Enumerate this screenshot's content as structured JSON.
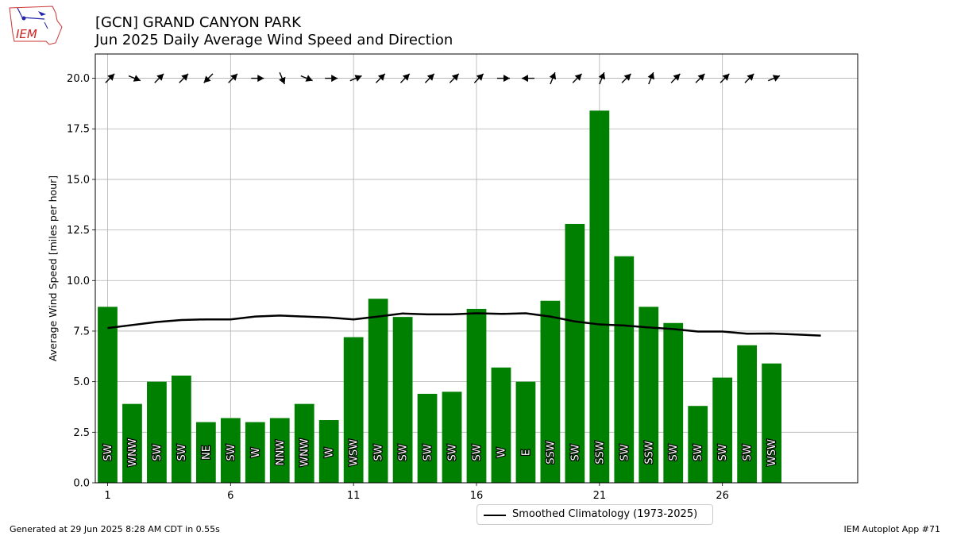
{
  "header": {
    "title_line1": "[GCN] GRAND CANYON PARK",
    "title_line2": "Jun 2025 Daily Average Wind Speed and Direction"
  },
  "logo": {
    "text": "IEM"
  },
  "footer": {
    "generated": "Generated at 29 Jun 2025 8:28 AM CDT in 0.55s",
    "app": "IEM Autoplot App #71"
  },
  "chart_data": {
    "type": "bar",
    "title": "[GCN] GRAND CANYON PARK",
    "subtitle": "Jun 2025 Daily Average Wind Speed and Direction",
    "ylabel": "Average Wind Speed [miles per hour]",
    "xlabel": "",
    "xlim": [
      0.5,
      31.5
    ],
    "ylim": [
      0,
      21.2
    ],
    "grid": true,
    "xticks": [
      1,
      6,
      11,
      16,
      21,
      26
    ],
    "yticks": [
      "0.0",
      "2.5",
      "5.0",
      "7.5",
      "10.0",
      "12.5",
      "15.0",
      "17.5",
      "20.0"
    ],
    "bar_color": "#008000",
    "days": [
      1,
      2,
      3,
      4,
      5,
      6,
      7,
      8,
      9,
      10,
      11,
      12,
      13,
      14,
      15,
      16,
      17,
      18,
      19,
      20,
      21,
      22,
      23,
      24,
      25,
      26,
      27,
      28
    ],
    "values": [
      8.7,
      3.9,
      5.0,
      5.3,
      3.0,
      3.2,
      3.0,
      3.2,
      3.9,
      3.1,
      7.2,
      9.1,
      8.2,
      4.4,
      4.5,
      8.6,
      5.7,
      5.0,
      9.0,
      12.8,
      18.4,
      11.2,
      8.7,
      7.9,
      3.8,
      5.2,
      6.8,
      5.9
    ],
    "directions": [
      "SW",
      "WNW",
      "SW",
      "SW",
      "NE",
      "SW",
      "W",
      "NNW",
      "WNW",
      "W",
      "WSW",
      "SW",
      "SW",
      "SW",
      "SW",
      "SW",
      "W",
      "E",
      "SSW",
      "SW",
      "SSW",
      "SW",
      "SSW",
      "SW",
      "SW",
      "SW",
      "SW",
      "WSW"
    ],
    "arrow_degrees": [
      225,
      292,
      225,
      225,
      45,
      225,
      270,
      337,
      292,
      270,
      247,
      225,
      225,
      225,
      225,
      225,
      270,
      90,
      202,
      225,
      202,
      225,
      202,
      225,
      225,
      225,
      225,
      247
    ],
    "series": [
      {
        "name": "Smoothed Climatology (1973-2025)",
        "color": "#000000",
        "x": [
          1,
          2,
          3,
          4,
          5,
          6,
          7,
          8,
          9,
          10,
          11,
          12,
          13,
          14,
          15,
          16,
          17,
          18,
          19,
          20,
          21,
          22,
          23,
          24,
          25,
          26,
          27,
          28,
          29,
          30
        ],
        "values": [
          7.65,
          7.8,
          7.95,
          8.05,
          8.08,
          8.08,
          8.22,
          8.27,
          8.22,
          8.17,
          8.08,
          8.22,
          8.37,
          8.33,
          8.33,
          8.38,
          8.35,
          8.38,
          8.22,
          7.98,
          7.83,
          7.78,
          7.68,
          7.6,
          7.48,
          7.48,
          7.37,
          7.38,
          7.33,
          7.28
        ]
      }
    ],
    "legend": {
      "placement": "bottom-center",
      "label": "Smoothed Climatology (1973-2025)"
    }
  }
}
